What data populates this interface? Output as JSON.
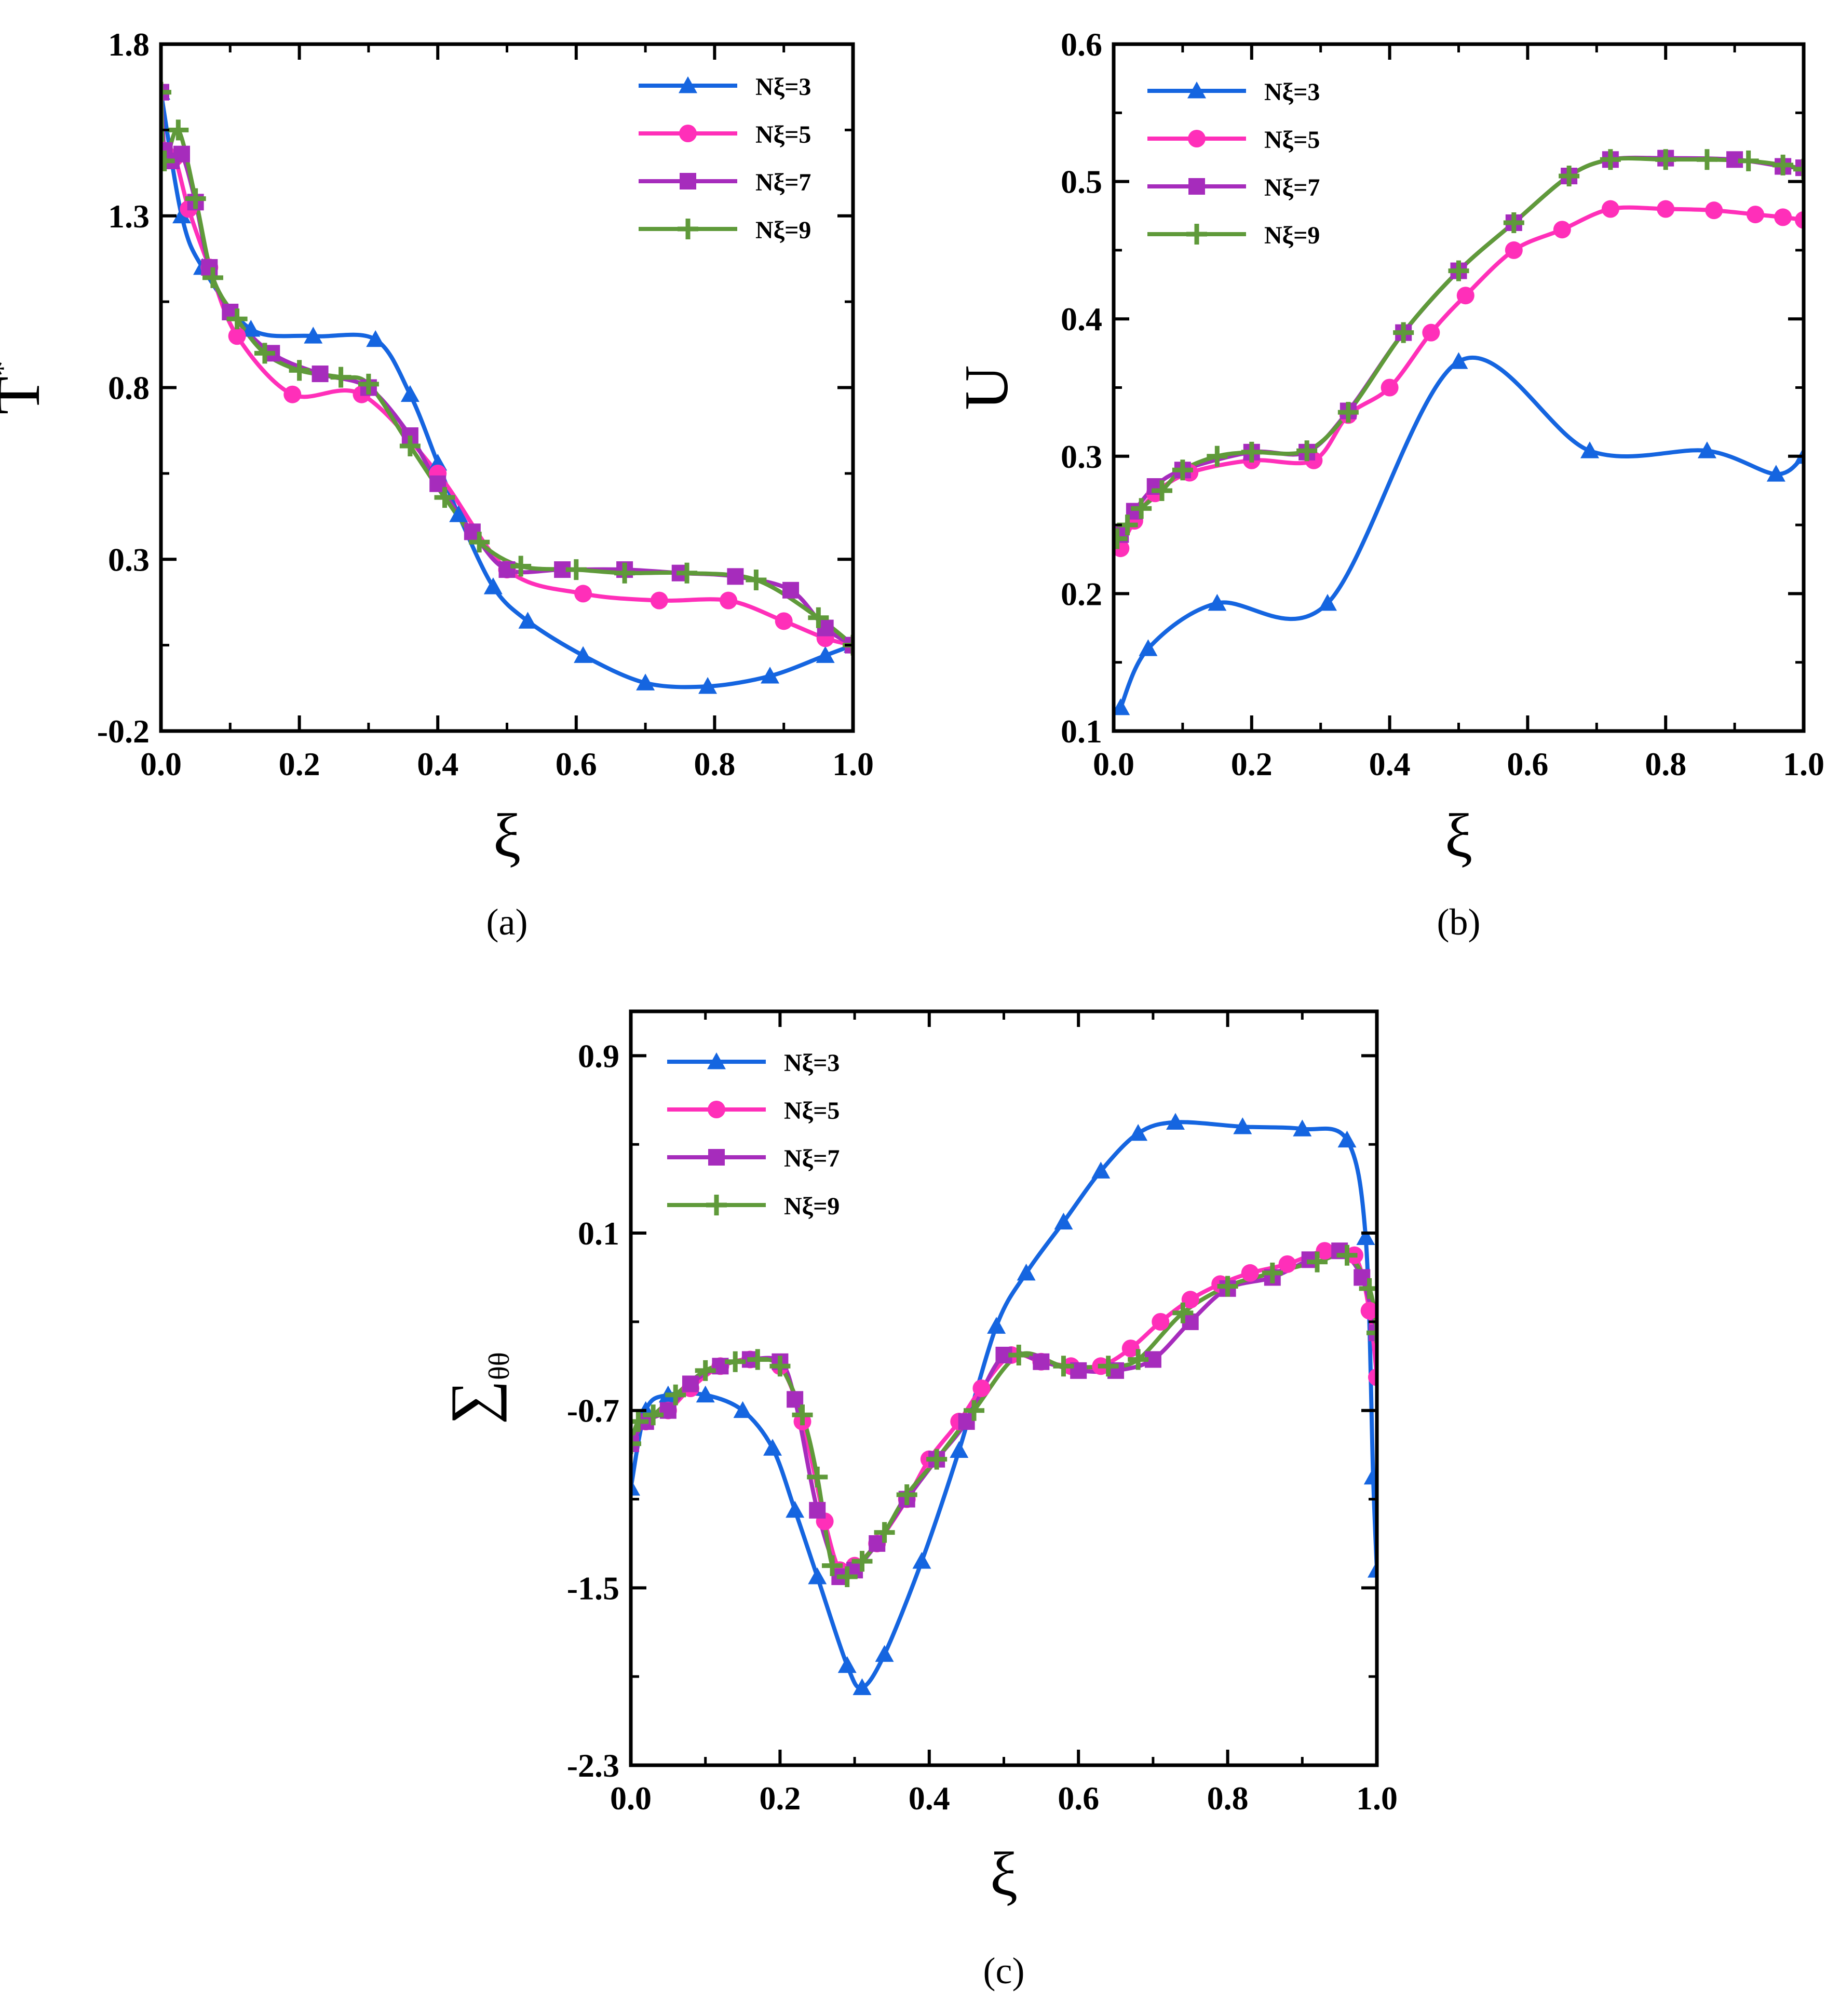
{
  "figure": {
    "series_names": [
      "Nξ=3",
      "Nξ=5",
      "Nξ=7",
      "Nξ=9"
    ],
    "series_colors": [
      "#1565e0",
      "#ff2fb9",
      "#a62cbc",
      "#5f9a3a"
    ],
    "series_markers": [
      "triangle",
      "circle",
      "square",
      "plus"
    ]
  },
  "chart_data": [
    {
      "type": "line",
      "panel_label": "(a)",
      "title": "",
      "xlabel": "ξ",
      "ylabel_main": "T",
      "ylabel_sup": "*",
      "ylabel_sub": "",
      "xlim": [
        0,
        1
      ],
      "ylim": [
        -0.2,
        1.8
      ],
      "xticks": [
        0,
        0.2,
        0.4,
        0.6,
        0.8,
        1.0
      ],
      "xtick_labels": [
        "0.0",
        "0.2",
        "0.4",
        "0.6",
        "0.8",
        "1.0"
      ],
      "yticks": [
        -0.2,
        0.3,
        0.8,
        1.3,
        1.8
      ],
      "ytick_labels": [
        "-0.2",
        "0.3",
        "0.8",
        "1.3",
        "1.8"
      ],
      "legend_position": "top-right",
      "series": [
        {
          "name": "Nξ=3",
          "x": [
            0.0,
            0.03,
            0.06,
            0.13,
            0.22,
            0.31,
            0.36,
            0.4,
            0.43,
            0.48,
            0.53,
            0.61,
            0.7,
            0.79,
            0.88,
            0.96,
            1.0
          ],
          "values": [
            1.66,
            1.3,
            1.15,
            0.97,
            0.95,
            0.94,
            0.78,
            0.58,
            0.43,
            0.22,
            0.12,
            0.02,
            -0.06,
            -0.07,
            -0.04,
            0.02,
            0.05
          ]
        },
        {
          "name": "Nξ=5",
          "x": [
            0.0,
            0.005,
            0.02,
            0.04,
            0.07,
            0.11,
            0.19,
            0.29,
            0.4,
            0.5,
            0.61,
            0.72,
            0.82,
            0.9,
            0.96,
            1.0
          ],
          "values": [
            1.66,
            1.49,
            1.47,
            1.32,
            1.15,
            0.95,
            0.78,
            0.78,
            0.55,
            0.27,
            0.2,
            0.18,
            0.18,
            0.12,
            0.07,
            0.05
          ]
        },
        {
          "name": "Nξ=7",
          "x": [
            0.0,
            0.005,
            0.015,
            0.03,
            0.05,
            0.07,
            0.1,
            0.16,
            0.23,
            0.3,
            0.36,
            0.4,
            0.45,
            0.5,
            0.58,
            0.67,
            0.75,
            0.83,
            0.91,
            0.96,
            1.0
          ],
          "values": [
            1.66,
            1.49,
            1.46,
            1.48,
            1.34,
            1.15,
            1.02,
            0.9,
            0.84,
            0.8,
            0.66,
            0.52,
            0.38,
            0.27,
            0.27,
            0.27,
            0.26,
            0.25,
            0.21,
            0.1,
            0.05
          ]
        },
        {
          "name": "Nξ=9",
          "x": [
            0.0,
            0.005,
            0.025,
            0.05,
            0.075,
            0.11,
            0.15,
            0.2,
            0.26,
            0.3,
            0.36,
            0.41,
            0.46,
            0.52,
            0.6,
            0.67,
            0.76,
            0.86,
            0.95,
            1.0
          ],
          "values": [
            1.66,
            1.46,
            1.55,
            1.35,
            1.12,
            1.0,
            0.9,
            0.85,
            0.83,
            0.81,
            0.63,
            0.48,
            0.35,
            0.28,
            0.27,
            0.26,
            0.26,
            0.24,
            0.13,
            0.05
          ]
        }
      ]
    },
    {
      "type": "line",
      "panel_label": "(b)",
      "title": "",
      "xlabel": "ξ",
      "ylabel_main": "U",
      "ylabel_sup": "",
      "ylabel_sub": "",
      "xlim": [
        0,
        1
      ],
      "ylim": [
        0.1,
        0.6
      ],
      "xticks": [
        0,
        0.2,
        0.4,
        0.6,
        0.8,
        1.0
      ],
      "xtick_labels": [
        "0.0",
        "0.2",
        "0.4",
        "0.6",
        "0.8",
        "1.0"
      ],
      "yticks": [
        0.1,
        0.2,
        0.3,
        0.4,
        0.5,
        0.6
      ],
      "ytick_labels": [
        "0.1",
        "0.2",
        "0.3",
        "0.4",
        "0.5",
        "0.6"
      ],
      "legend_position": "top-left",
      "series": [
        {
          "name": "Nξ=3",
          "x": [
            0.01,
            0.05,
            0.15,
            0.31,
            0.5,
            0.69,
            0.86,
            0.96,
            1.0
          ],
          "values": [
            0.117,
            0.16,
            0.193,
            0.193,
            0.369,
            0.304,
            0.304,
            0.287,
            0.3
          ]
        },
        {
          "name": "Nξ=5",
          "x": [
            0.01,
            0.03,
            0.06,
            0.11,
            0.2,
            0.29,
            0.34,
            0.4,
            0.46,
            0.51,
            0.58,
            0.65,
            0.72,
            0.8,
            0.87,
            0.93,
            0.97,
            1.0
          ],
          "values": [
            0.233,
            0.253,
            0.273,
            0.288,
            0.297,
            0.297,
            0.33,
            0.35,
            0.39,
            0.417,
            0.45,
            0.465,
            0.48,
            0.48,
            0.479,
            0.476,
            0.474,
            0.472
          ]
        },
        {
          "name": "Nξ=7",
          "x": [
            0.01,
            0.03,
            0.06,
            0.1,
            0.2,
            0.28,
            0.34,
            0.42,
            0.5,
            0.58,
            0.66,
            0.72,
            0.8,
            0.9,
            0.97,
            1.0
          ],
          "values": [
            0.243,
            0.26,
            0.278,
            0.29,
            0.303,
            0.303,
            0.333,
            0.39,
            0.435,
            0.47,
            0.504,
            0.516,
            0.517,
            0.516,
            0.511,
            0.51
          ]
        },
        {
          "name": "Nξ=9",
          "x": [
            0.005,
            0.02,
            0.04,
            0.07,
            0.1,
            0.15,
            0.2,
            0.28,
            0.34,
            0.42,
            0.5,
            0.58,
            0.66,
            0.72,
            0.8,
            0.86,
            0.92,
            0.97,
            1.0
          ],
          "values": [
            0.24,
            0.25,
            0.262,
            0.275,
            0.29,
            0.3,
            0.303,
            0.304,
            0.332,
            0.39,
            0.435,
            0.47,
            0.504,
            0.516,
            0.516,
            0.516,
            0.515,
            0.512,
            0.509
          ]
        }
      ]
    },
    {
      "type": "line",
      "panel_label": "(c)",
      "title": "",
      "xlabel": "ξ",
      "ylabel_main": "∑",
      "ylabel_sup": "",
      "ylabel_sub": "θθ",
      "xlim": [
        0,
        1
      ],
      "ylim": [
        -2.3,
        1.1
      ],
      "xticks": [
        0,
        0.2,
        0.4,
        0.6,
        0.8,
        1.0
      ],
      "xtick_labels": [
        "0.0",
        "0.2",
        "0.4",
        "0.6",
        "0.8",
        "1.0"
      ],
      "yticks": [
        -2.3,
        -1.5,
        -0.7,
        0.1,
        0.9
      ],
      "ytick_labels": [
        "-2.3",
        "-1.5",
        "-0.7",
        "0.1",
        "0.9"
      ],
      "legend_position": "top-left",
      "series": [
        {
          "name": "Nξ=3",
          "x": [
            0.0,
            0.02,
            0.05,
            0.1,
            0.15,
            0.19,
            0.22,
            0.25,
            0.29,
            0.31,
            0.34,
            0.39,
            0.44,
            0.49,
            0.53,
            0.58,
            0.63,
            0.68,
            0.73,
            0.82,
            0.9,
            0.96,
            0.985,
            0.995,
            1.0
          ],
          "values": [
            -1.05,
            -0.7,
            -0.63,
            -0.63,
            -0.7,
            -0.87,
            -1.15,
            -1.45,
            -1.85,
            -1.95,
            -1.8,
            -1.38,
            -0.88,
            -0.32,
            -0.08,
            0.15,
            0.38,
            0.55,
            0.6,
            0.58,
            0.57,
            0.52,
            0.08,
            -1.0,
            -1.42
          ]
        },
        {
          "name": "Nξ=5",
          "x": [
            0.0,
            0.02,
            0.05,
            0.08,
            0.12,
            0.16,
            0.2,
            0.23,
            0.26,
            0.28,
            0.3,
            0.33,
            0.37,
            0.4,
            0.44,
            0.47,
            0.51,
            0.55,
            0.59,
            0.63,
            0.67,
            0.71,
            0.75,
            0.79,
            0.83,
            0.88,
            0.93,
            0.97,
            0.99,
            1.0
          ],
          "values": [
            -0.85,
            -0.75,
            -0.7,
            -0.6,
            -0.5,
            -0.47,
            -0.5,
            -0.75,
            -1.2,
            -1.42,
            -1.4,
            -1.3,
            -1.1,
            -0.92,
            -0.75,
            -0.6,
            -0.45,
            -0.48,
            -0.5,
            -0.5,
            -0.42,
            -0.3,
            -0.2,
            -0.13,
            -0.08,
            -0.04,
            0.02,
            0.0,
            -0.25,
            -0.55
          ]
        },
        {
          "name": "Nξ=7",
          "x": [
            0.0,
            0.02,
            0.05,
            0.08,
            0.12,
            0.16,
            0.2,
            0.22,
            0.25,
            0.28,
            0.3,
            0.33,
            0.37,
            0.41,
            0.45,
            0.5,
            0.55,
            0.6,
            0.65,
            0.7,
            0.75,
            0.8,
            0.86,
            0.91,
            0.95,
            0.98,
            1.0
          ],
          "values": [
            -0.85,
            -0.75,
            -0.7,
            -0.58,
            -0.5,
            -0.47,
            -0.48,
            -0.65,
            -1.15,
            -1.45,
            -1.42,
            -1.3,
            -1.1,
            -0.92,
            -0.75,
            -0.45,
            -0.48,
            -0.52,
            -0.52,
            -0.47,
            -0.3,
            -0.15,
            -0.1,
            -0.02,
            0.02,
            -0.1,
            -0.35
          ]
        },
        {
          "name": "Nξ=9",
          "x": [
            0.0,
            0.01,
            0.03,
            0.06,
            0.1,
            0.14,
            0.17,
            0.2,
            0.23,
            0.25,
            0.27,
            0.29,
            0.31,
            0.34,
            0.37,
            0.41,
            0.46,
            0.52,
            0.58,
            0.64,
            0.68,
            0.74,
            0.8,
            0.86,
            0.92,
            0.96,
            0.99,
            1.0
          ],
          "values": [
            -0.85,
            -0.75,
            -0.72,
            -0.63,
            -0.52,
            -0.48,
            -0.47,
            -0.5,
            -0.72,
            -1.0,
            -1.4,
            -1.45,
            -1.38,
            -1.25,
            -1.08,
            -0.92,
            -0.7,
            -0.45,
            -0.5,
            -0.5,
            -0.47,
            -0.26,
            -0.14,
            -0.08,
            -0.03,
            0.0,
            -0.15,
            -0.35
          ]
        }
      ]
    }
  ]
}
